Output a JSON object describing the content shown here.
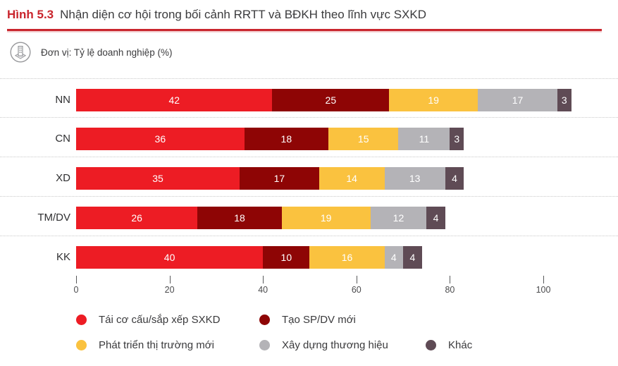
{
  "header": {
    "figure_label": "Hình 5.3",
    "title": "Nhận diện cơ hội trong bối cảnh RRTT và BĐKH theo lĩnh vực SXKD"
  },
  "unit": {
    "icon": "building-icon",
    "label": "Đơn vị: Tỷ lệ doanh nghiệp (%)"
  },
  "colors": {
    "accent_red": "#c9252d",
    "series_red": "#ed1c24",
    "series_dark_red": "#8e0505",
    "series_yellow": "#fac23f",
    "series_gray": "#b4b3b7",
    "series_dark_mauve": "#5f4b55",
    "title_text": "#3b3b3d"
  },
  "chart_data": {
    "type": "bar",
    "orientation": "horizontal",
    "stacked": true,
    "title": "Nhận diện cơ hội trong bối cảnh RRTT và BĐKH theo lĩnh vực SXKD",
    "unit_label": "Đơn vị: Tỷ lệ doanh nghiệp (%)",
    "categories": [
      "NN",
      "CN",
      "XD",
      "TM/DV",
      "KK"
    ],
    "series": [
      {
        "name": "Tái cơ cấu/sắp xếp SXKD",
        "color": "#ed1c24",
        "values": [
          42,
          36,
          35,
          26,
          40
        ]
      },
      {
        "name": "Tạo SP/DV mới",
        "color": "#8e0505",
        "values": [
          25,
          18,
          17,
          18,
          10
        ]
      },
      {
        "name": "Phát triển thị trường mới",
        "color": "#fac23f",
        "values": [
          19,
          15,
          14,
          19,
          16
        ]
      },
      {
        "name": "Xây dựng thương hiệu",
        "color": "#b4b3b7",
        "values": [
          17,
          11,
          13,
          12,
          4
        ]
      },
      {
        "name": "Khác",
        "color": "#5f4b55",
        "values": [
          3,
          3,
          4,
          4,
          4
        ]
      }
    ],
    "x_axis": {
      "ticks": [
        0,
        20,
        40,
        60,
        80,
        100
      ],
      "min": 0,
      "max": 100
    },
    "grid": "dotted-row-separators",
    "legend_position": "bottom",
    "data_labels": "inside-white"
  }
}
